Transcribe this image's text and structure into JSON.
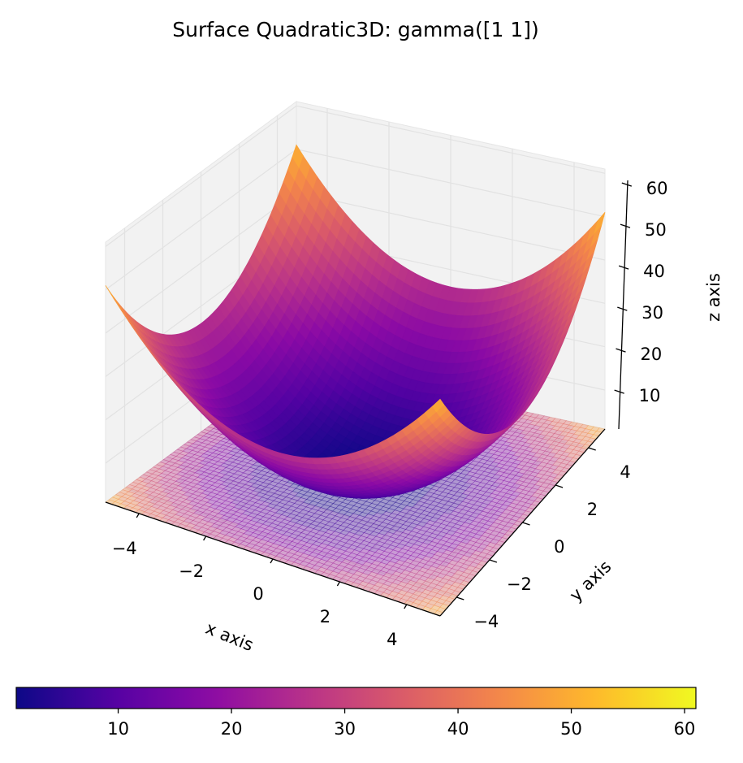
{
  "chart_data": {
    "type": "surface3d",
    "title": "Surface Quadratic3D: gamma([1 1])",
    "xlabel": "x axis",
    "ylabel": "y axis",
    "zlabel": "z axis",
    "function": "z = x^2 + y^2 + 1",
    "x_range": [
      -5,
      5
    ],
    "y_range": [
      -5,
      5
    ],
    "z_range": [
      1,
      61
    ],
    "x_ticks": [
      -4,
      -2,
      0,
      2,
      4
    ],
    "y_ticks": [
      -4,
      -2,
      0,
      2,
      4
    ],
    "z_ticks": [
      10,
      20,
      30,
      40,
      50,
      60
    ],
    "x_tick_labels": [
      "−4",
      "−2",
      "0",
      "2",
      "4"
    ],
    "y_tick_labels": [
      "−4",
      "−2",
      "0",
      "2",
      "4"
    ],
    "z_tick_labels": [
      "10",
      "20",
      "30",
      "40",
      "50",
      "60"
    ],
    "contour_levels": [
      5,
      10,
      15,
      20,
      25,
      30,
      35,
      40,
      45,
      50,
      55
    ],
    "contour_projection": "filled contours projected on floor (z offset)",
    "colorbar": {
      "orientation": "horizontal",
      "placement": "bottom",
      "range": [
        1,
        61
      ],
      "ticks": [
        10,
        20,
        30,
        40,
        50,
        60
      ],
      "tick_labels": [
        "10",
        "20",
        "30",
        "40",
        "50",
        "60"
      ]
    },
    "colormap": "plasma",
    "colormap_stops": [
      "#0d0887",
      "#5402a3",
      "#8b0aa5",
      "#b93289",
      "#db5c68",
      "#f48849",
      "#febc2a",
      "#f0f921"
    ],
    "grid": true,
    "pane_color": "#f2f2f2"
  }
}
